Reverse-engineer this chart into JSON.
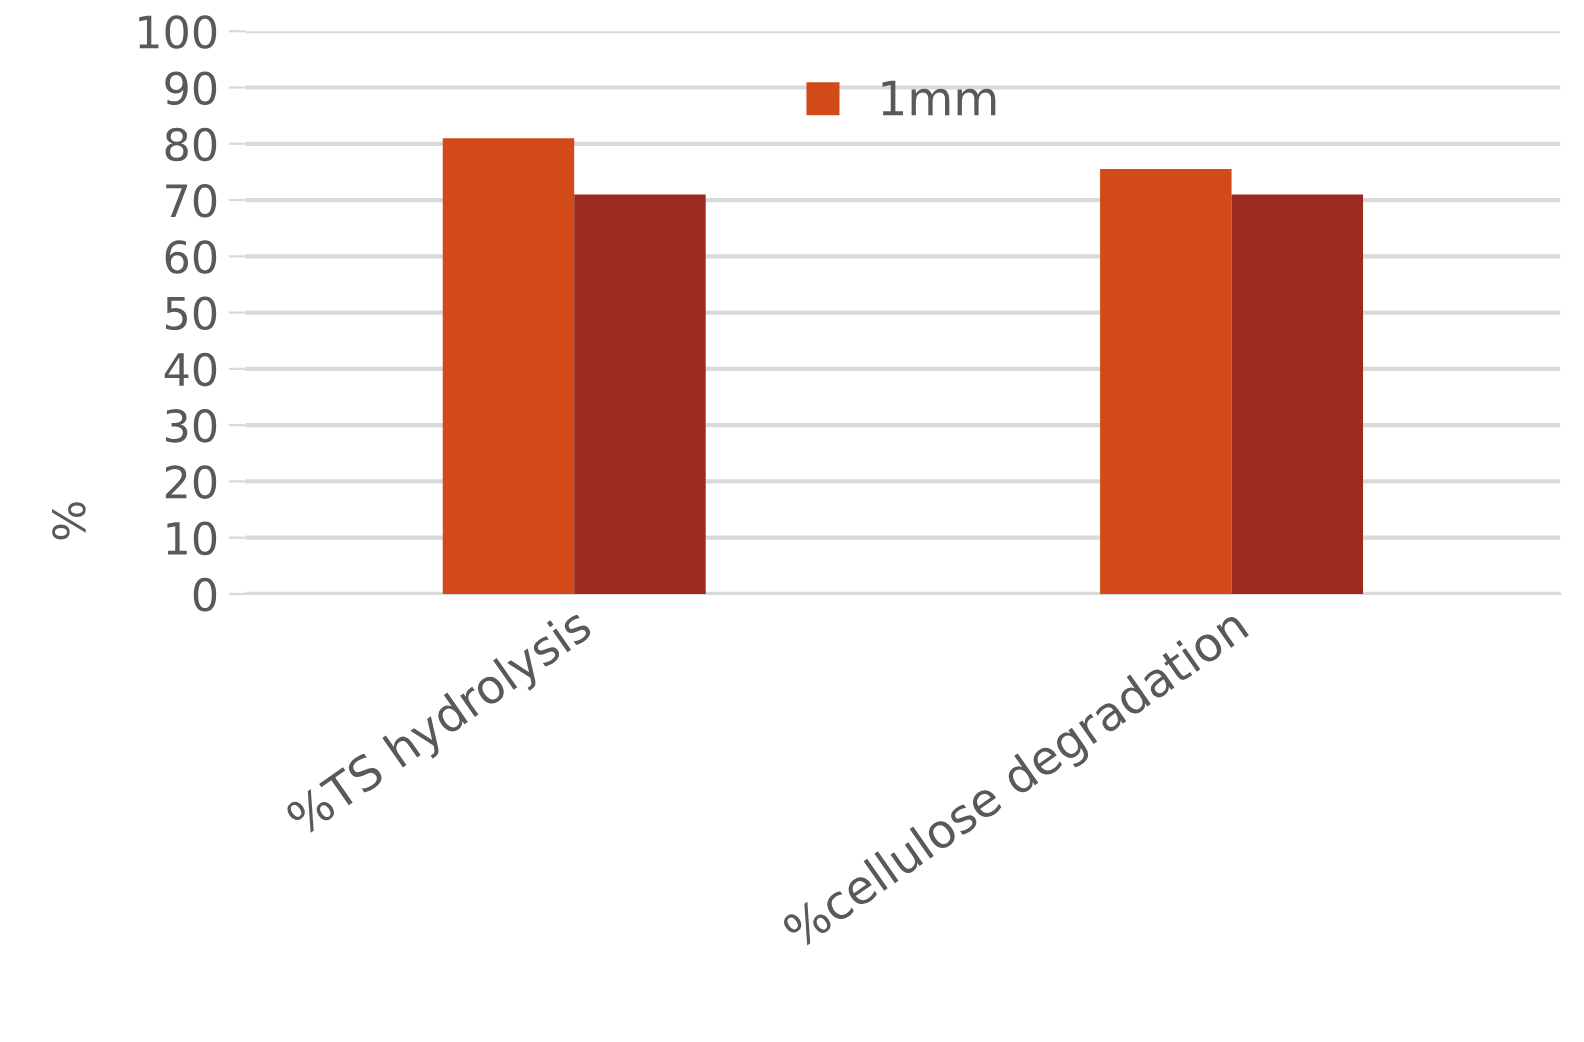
{
  "chart_data": {
    "type": "bar",
    "ylabel": "%",
    "categories": [
      "%TS hydrolysis",
      "%cellulose degradation"
    ],
    "series": [
      {
        "name": "1mm",
        "color": "#d24a17",
        "values": [
          81,
          75.5
        ]
      },
      {
        "color": "#9c2b1f",
        "values": [
          71,
          71
        ]
      }
    ],
    "ylim": [
      0,
      100
    ],
    "yticks": [
      0,
      10,
      20,
      30,
      40,
      50,
      60,
      70,
      80,
      90,
      100
    ],
    "grid": "y",
    "legend": "top"
  }
}
